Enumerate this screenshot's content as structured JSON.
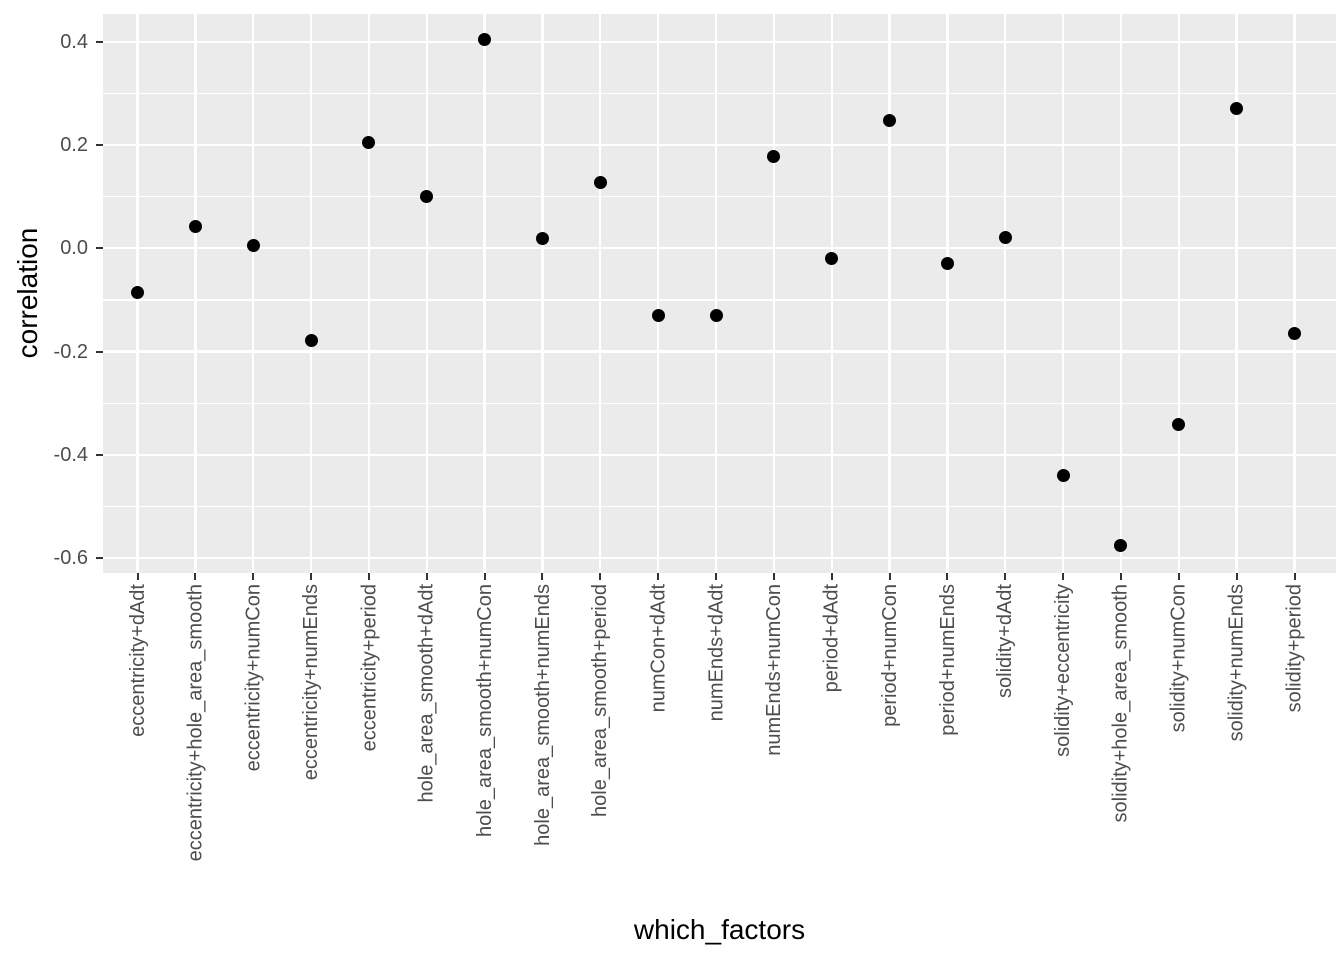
{
  "chart_data": {
    "type": "scatter",
    "style": "ggplot2",
    "title": "",
    "xlabel": "which_factors",
    "ylabel": "correlation",
    "categories": [
      "eccentricity+dAdt",
      "eccentricity+hole_area_smooth",
      "eccentricity+numCon",
      "eccentricity+numEnds",
      "eccentricity+period",
      "hole_area_smooth+dAdt",
      "hole_area_smooth+numCon",
      "hole_area_smooth+numEnds",
      "hole_area_smooth+period",
      "numCon+dAdt",
      "numEnds+dAdt",
      "numEnds+numCon",
      "period+dAdt",
      "period+numCon",
      "period+numEnds",
      "solidity+dAdt",
      "solidity+eccentricity",
      "solidity+hole_area_smooth",
      "solidity+numCon",
      "solidity+numEnds",
      "solidity+period"
    ],
    "values": [
      -0.085,
      0.042,
      0.006,
      -0.179,
      0.205,
      0.101,
      0.405,
      0.019,
      0.128,
      -0.13,
      -0.13,
      0.177,
      -0.019,
      0.248,
      -0.03,
      0.02,
      -0.439,
      -0.575,
      -0.341,
      0.271,
      -0.165
    ],
    "ylim": [
      -0.629,
      0.454
    ],
    "y_major_ticks": [
      0.4,
      0.2,
      0.0,
      -0.2,
      -0.4,
      -0.6
    ],
    "y_tick_labels": [
      "0.4",
      "0.2",
      "0.0",
      "-0.2",
      "-0.4",
      "-0.6"
    ],
    "y_minor_ticks": [
      0.3,
      0.1,
      -0.1,
      -0.3,
      -0.5
    ],
    "legend": "none",
    "grid": "white major+minor horizontal, white major vertical, on gray panel",
    "colors": {
      "point": "#000000",
      "panel_background": "#EBEBEB",
      "gridline": "#FFFFFF",
      "tick_mark": "#333333",
      "tick_label": "#4D4D4D",
      "axis_title": "#000000",
      "page_background": "#FFFFFF"
    }
  }
}
